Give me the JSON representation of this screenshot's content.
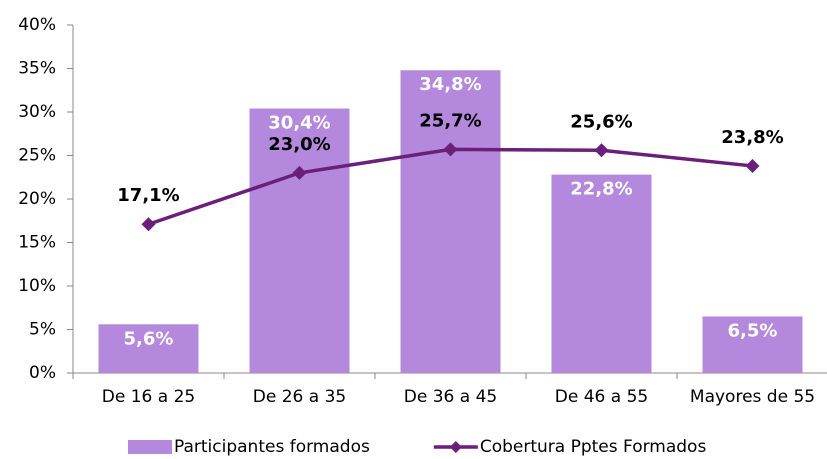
{
  "chart_data": {
    "type": "bar",
    "categories": [
      "De 16 a 25",
      "De 26 a 35",
      "De 36 a 45",
      "De 46 a 55",
      "Mayores de 55"
    ],
    "series": [
      {
        "name": "Participantes formados",
        "type": "bar",
        "color": "#b388dd",
        "values": [
          5.6,
          30.4,
          34.8,
          22.8,
          6.5
        ],
        "value_labels": [
          "5,6%",
          "30,4%",
          "34,8%",
          "22,8%",
          "6,5%"
        ]
      },
      {
        "name": "Cobertura Pptes Formados",
        "type": "line",
        "color": "#6a1f7a",
        "values": [
          17.1,
          23.0,
          25.7,
          25.6,
          23.8
        ],
        "value_labels": [
          "17,1%",
          "23,0%",
          "25,7%",
          "25,6%",
          "23,8%"
        ]
      }
    ],
    "ylim": [
      0,
      40
    ],
    "yticks": [
      {
        "value": 0,
        "label": "0%"
      },
      {
        "value": 5,
        "label": "5%"
      },
      {
        "value": 10,
        "label": "10%"
      },
      {
        "value": 15,
        "label": "15%"
      },
      {
        "value": 20,
        "label": "20%"
      },
      {
        "value": 25,
        "label": "25%"
      },
      {
        "value": 30,
        "label": "30%"
      },
      {
        "value": 35,
        "label": "35%"
      },
      {
        "value": 40,
        "label": "40%"
      }
    ],
    "legend": "bottom",
    "grid": false
  }
}
